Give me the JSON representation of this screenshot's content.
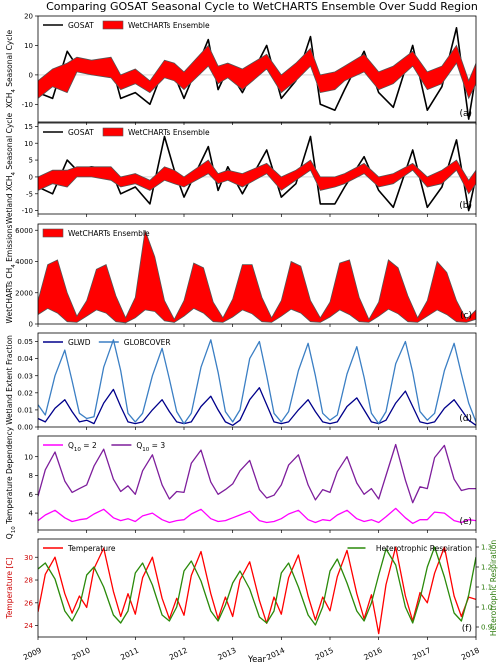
{
  "figure_title": "Comparing GOSAT Seasonal Cycle to WetCHARTS Ensemble Over Sudd Region",
  "x_axis": {
    "label": "Year",
    "ticks": [
      "2009",
      "2010",
      "2011",
      "2012",
      "2013",
      "2014",
      "2015",
      "2016",
      "2017",
      "2018"
    ]
  },
  "chart_data": [
    {
      "type": "line",
      "panel_label": "(a)",
      "ylabel": "XCH4 Seasonal Cycle",
      "ylim": [
        -16,
        20
      ],
      "yticks": [
        -10,
        0,
        10,
        20
      ],
      "grid": false,
      "legend": "top-left",
      "x": [
        2009.0,
        2009.3,
        2009.6,
        2009.8,
        2010.1,
        2010.5,
        2010.7,
        2011.0,
        2011.3,
        2011.6,
        2011.8,
        2012.0,
        2012.5,
        2012.7,
        2012.9,
        2013.2,
        2013.7,
        2014.0,
        2014.3,
        2014.6,
        2014.8,
        2015.1,
        2015.3,
        2015.7,
        2016.0,
        2016.3,
        2016.7,
        2017.0,
        2017.3,
        2017.6,
        2017.85,
        2018.0
      ],
      "series": [
        {
          "name": "GOSAT",
          "style": "line",
          "color": "#000000",
          "values": [
            -6,
            -8,
            8,
            3,
            3,
            4,
            -8,
            -6,
            -10,
            3,
            0,
            -8,
            12,
            -5,
            2,
            -6,
            10,
            -8,
            -2,
            13,
            -10,
            -12,
            -5,
            8,
            -6,
            -11,
            10,
            -12,
            -4,
            16,
            -15,
            0
          ]
        },
        {
          "name": "WetCHARTs Ensemble",
          "style": "band",
          "color": "#ff0000",
          "lower": [
            -8,
            -4,
            -6,
            1,
            0,
            -1,
            -5,
            -3,
            -6,
            -1,
            -2,
            -5,
            3,
            -3,
            -1,
            -5,
            2,
            -6,
            -2,
            3,
            -6,
            -5,
            -2,
            1,
            -5,
            -3,
            3,
            -5,
            -3,
            4,
            -8,
            -3
          ],
          "upper": [
            -2,
            2,
            4,
            6,
            5,
            6,
            0,
            2,
            -2,
            5,
            4,
            1,
            10,
            3,
            4,
            2,
            7,
            0,
            4,
            9,
            0,
            1,
            3,
            7,
            1,
            3,
            8,
            1,
            3,
            10,
            -2,
            4
          ]
        }
      ]
    },
    {
      "type": "line",
      "panel_label": "(b)",
      "ylabel": "Wetland XCH4 Seasonal Cycle",
      "ylim": [
        -11,
        16
      ],
      "yticks": [
        -10,
        -5,
        0,
        5,
        10,
        15
      ],
      "grid": false,
      "legend": "top-left",
      "x": [
        2009.0,
        2009.3,
        2009.6,
        2009.8,
        2010.1,
        2010.5,
        2010.7,
        2011.0,
        2011.3,
        2011.6,
        2011.8,
        2012.0,
        2012.5,
        2012.7,
        2012.9,
        2013.2,
        2013.7,
        2014.0,
        2014.3,
        2014.6,
        2014.8,
        2015.1,
        2015.3,
        2015.7,
        2016.0,
        2016.3,
        2016.7,
        2017.0,
        2017.3,
        2017.6,
        2017.85,
        2018.0
      ],
      "series": [
        {
          "name": "GOSAT",
          "style": "line",
          "color": "#000000",
          "values": [
            -3,
            -5,
            5,
            2,
            3,
            2,
            -5,
            -3,
            -8,
            12,
            2,
            -6,
            9,
            -4,
            3,
            -5,
            8,
            -6,
            -2,
            12,
            -8,
            -8,
            -3,
            6,
            -4,
            -9,
            8,
            -9,
            -3,
            11,
            -10,
            0
          ]
        },
        {
          "name": "WetCHARTs Ensemble",
          "style": "band",
          "color": "#ff0000",
          "lower": [
            -4,
            -2,
            -3,
            0,
            0,
            -1,
            -3,
            -2,
            -4,
            -1,
            -2,
            -3,
            1,
            -2,
            -1,
            -3,
            1,
            -4,
            -1,
            2,
            -4,
            -3,
            -2,
            1,
            -3,
            -2,
            2,
            -3,
            -2,
            2,
            -5,
            -2
          ],
          "upper": [
            0,
            2,
            2,
            3,
            3,
            3,
            0,
            1,
            -1,
            3,
            2,
            0,
            5,
            1,
            2,
            1,
            4,
            0,
            2,
            5,
            0,
            0,
            1,
            4,
            0,
            1,
            4,
            0,
            2,
            5,
            -1,
            2
          ]
        }
      ]
    },
    {
      "type": "area",
      "panel_label": "(c)",
      "ylabel": "WetCHARTs CH4 Emissions",
      "ylim": [
        0,
        6400
      ],
      "yticks": [
        0,
        2000,
        4000,
        6000
      ],
      "grid": false,
      "legend": "top-left",
      "x": [
        2009.0,
        2009.2,
        2009.4,
        2009.6,
        2009.8,
        2010.0,
        2010.2,
        2010.4,
        2010.6,
        2010.8,
        2011.0,
        2011.2,
        2011.4,
        2011.6,
        2011.8,
        2012.0,
        2012.2,
        2012.4,
        2012.6,
        2012.8,
        2013.0,
        2013.2,
        2013.4,
        2013.6,
        2013.8,
        2014.0,
        2014.2,
        2014.4,
        2014.6,
        2014.8,
        2015.0,
        2015.2,
        2015.4,
        2015.6,
        2015.8,
        2016.0,
        2016.2,
        2016.4,
        2016.6,
        2016.8,
        2017.0,
        2017.2,
        2017.4,
        2017.6,
        2017.8,
        2018.0
      ],
      "series": [
        {
          "name": "WetCHARTs Ensemble",
          "style": "band",
          "color": "#ff0000",
          "lower": [
            600,
            1000,
            700,
            150,
            100,
            500,
            900,
            700,
            150,
            80,
            400,
            900,
            800,
            200,
            100,
            500,
            1000,
            700,
            150,
            100,
            450,
            900,
            650,
            150,
            100,
            500,
            950,
            700,
            150,
            100,
            450,
            900,
            600,
            150,
            100,
            500,
            950,
            650,
            150,
            100,
            500,
            900,
            600,
            150,
            100,
            300
          ],
          "upper": [
            1500,
            3800,
            4100,
            2000,
            500,
            1500,
            3500,
            3800,
            1800,
            400,
            1700,
            6000,
            4300,
            1500,
            300,
            1500,
            3900,
            3600,
            1400,
            400,
            1600,
            3800,
            3800,
            1700,
            400,
            1500,
            4000,
            3700,
            1500,
            400,
            1400,
            3900,
            4100,
            1700,
            300,
            1400,
            4100,
            3600,
            1800,
            400,
            1500,
            4000,
            3300,
            1500,
            300,
            900
          ]
        }
      ]
    },
    {
      "type": "line",
      "panel_label": "(d)",
      "ylabel": "Wetland Extent Fraction",
      "ylim": [
        0,
        0.055
      ],
      "yticks": [
        0.0,
        0.01,
        0.02,
        0.03,
        0.04,
        0.05
      ],
      "grid": false,
      "legend": "top-left",
      "x": [
        2009.0,
        2009.15,
        2009.35,
        2009.55,
        2009.7,
        2009.85,
        2010.0,
        2010.15,
        2010.35,
        2010.55,
        2010.7,
        2010.85,
        2011.0,
        2011.15,
        2011.35,
        2011.55,
        2011.7,
        2011.85,
        2012.0,
        2012.15,
        2012.35,
        2012.55,
        2012.7,
        2012.85,
        2013.0,
        2013.15,
        2013.35,
        2013.55,
        2013.7,
        2013.85,
        2014.0,
        2014.15,
        2014.35,
        2014.55,
        2014.7,
        2014.85,
        2015.0,
        2015.15,
        2015.35,
        2015.55,
        2015.7,
        2015.85,
        2016.0,
        2016.15,
        2016.35,
        2016.55,
        2016.7,
        2016.85,
        2017.0,
        2017.15,
        2017.35,
        2017.55,
        2017.7,
        2017.85,
        2018.0
      ],
      "series": [
        {
          "name": "GLWD",
          "style": "line",
          "color": "#00008b",
          "values": [
            0.005,
            0.003,
            0.011,
            0.016,
            0.009,
            0.003,
            0.004,
            0.002,
            0.014,
            0.022,
            0.012,
            0.003,
            0.002,
            0.003,
            0.01,
            0.016,
            0.009,
            0.003,
            0.002,
            0.003,
            0.012,
            0.018,
            0.01,
            0.003,
            0.001,
            0.004,
            0.016,
            0.023,
            0.013,
            0.003,
            0.002,
            0.003,
            0.01,
            0.016,
            0.009,
            0.003,
            0.002,
            0.003,
            0.012,
            0.017,
            0.01,
            0.003,
            0.002,
            0.004,
            0.014,
            0.021,
            0.012,
            0.003,
            0.002,
            0.003,
            0.011,
            0.016,
            0.01,
            0.004,
            0.001
          ]
        },
        {
          "name": "GLOBCOVER",
          "style": "line",
          "color": "#3b7fc4",
          "values": [
            0.013,
            0.007,
            0.03,
            0.045,
            0.027,
            0.008,
            0.005,
            0.006,
            0.035,
            0.051,
            0.033,
            0.008,
            0.003,
            0.008,
            0.03,
            0.046,
            0.028,
            0.009,
            0.002,
            0.008,
            0.035,
            0.051,
            0.032,
            0.009,
            0.003,
            0.01,
            0.04,
            0.05,
            0.03,
            0.008,
            0.003,
            0.009,
            0.033,
            0.049,
            0.03,
            0.008,
            0.004,
            0.007,
            0.031,
            0.047,
            0.029,
            0.008,
            0.002,
            0.009,
            0.037,
            0.05,
            0.032,
            0.009,
            0.004,
            0.008,
            0.033,
            0.049,
            0.031,
            0.014,
            0.003
          ]
        }
      ]
    },
    {
      "type": "line",
      "panel_label": "(e)",
      "ylabel": "Q10 Temperature Dependency",
      "ylim": [
        2.2,
        12.2
      ],
      "yticks": [
        4,
        6,
        8,
        10
      ],
      "grid": false,
      "legend": "top-left",
      "x": [
        2009.0,
        2009.15,
        2009.35,
        2009.55,
        2009.7,
        2009.85,
        2010.0,
        2010.15,
        2010.35,
        2010.55,
        2010.7,
        2010.85,
        2011.0,
        2011.15,
        2011.35,
        2011.55,
        2011.7,
        2011.85,
        2012.0,
        2012.15,
        2012.35,
        2012.55,
        2012.7,
        2012.85,
        2013.0,
        2013.15,
        2013.35,
        2013.55,
        2013.7,
        2013.85,
        2014.0,
        2014.15,
        2014.35,
        2014.55,
        2014.7,
        2014.85,
        2015.0,
        2015.15,
        2015.35,
        2015.55,
        2015.7,
        2015.85,
        2016.0,
        2016.15,
        2016.35,
        2016.55,
        2016.7,
        2016.85,
        2017.0,
        2017.15,
        2017.35,
        2017.55,
        2017.7,
        2017.85,
        2018.0
      ],
      "series": [
        {
          "name": "Q10 = 2",
          "style": "line",
          "color": "#ff00ff",
          "values": [
            3.2,
            3.8,
            4.3,
            3.5,
            3.1,
            3.3,
            3.4,
            3.9,
            4.4,
            3.5,
            3.2,
            3.4,
            3.1,
            3.7,
            4.0,
            3.3,
            3.0,
            3.2,
            3.3,
            3.9,
            4.4,
            3.4,
            3.1,
            3.2,
            3.5,
            3.8,
            4.2,
            3.2,
            3.0,
            3.1,
            3.4,
            3.9,
            4.3,
            3.3,
            3.0,
            3.3,
            3.2,
            3.8,
            4.3,
            3.4,
            3.1,
            3.3,
            3.0,
            3.6,
            4.5,
            3.5,
            2.9,
            3.3,
            3.3,
            4.1,
            4.0,
            3.2,
            3.0,
            3.3,
            3.2
          ]
        },
        {
          "name": "Q10 = 3",
          "style": "line",
          "color": "#7e1e9c",
          "values": [
            5.8,
            8.6,
            10.5,
            7.4,
            6.2,
            6.6,
            7.0,
            9.0,
            10.8,
            7.6,
            6.3,
            6.9,
            6.0,
            8.5,
            10.2,
            7.0,
            5.5,
            6.3,
            6.2,
            9.3,
            10.7,
            7.3,
            6.0,
            6.5,
            7.1,
            8.5,
            9.6,
            6.5,
            5.6,
            5.9,
            7.0,
            9.1,
            10.2,
            7.0,
            5.4,
            6.5,
            6.2,
            8.4,
            10.0,
            7.2,
            6.0,
            6.6,
            5.5,
            8.0,
            11.3,
            7.5,
            5.1,
            6.8,
            6.6,
            9.9,
            11.2,
            7.6,
            6.4,
            6.6,
            6.6
          ]
        }
      ]
    },
    {
      "type": "line",
      "panel_label": "(f)",
      "ylabel": "Temperature [C]",
      "ylabel_right": "Heterotrophic Respiration",
      "ylim": [
        23,
        31.6
      ],
      "yticks": [
        24,
        26,
        28,
        30
      ],
      "ylim_right": [
        0.85,
        1.34
      ],
      "yticks_right": [
        0.9,
        1.0,
        1.1,
        1.2,
        1.3
      ],
      "grid": false,
      "legend": "top-left / top-right",
      "x": [
        2009.0,
        2009.15,
        2009.35,
        2009.55,
        2009.7,
        2009.85,
        2010.0,
        2010.15,
        2010.35,
        2010.55,
        2010.7,
        2010.85,
        2011.0,
        2011.15,
        2011.35,
        2011.55,
        2011.7,
        2011.85,
        2012.0,
        2012.15,
        2012.35,
        2012.55,
        2012.7,
        2012.85,
        2013.0,
        2013.15,
        2013.35,
        2013.55,
        2013.7,
        2013.85,
        2014.0,
        2014.15,
        2014.35,
        2014.55,
        2014.7,
        2014.85,
        2015.0,
        2015.15,
        2015.35,
        2015.55,
        2015.7,
        2015.85,
        2016.0,
        2016.15,
        2016.35,
        2016.55,
        2016.7,
        2016.85,
        2017.0,
        2017.15,
        2017.35,
        2017.55,
        2017.7,
        2017.85,
        2018.0
      ],
      "series": [
        {
          "name": "Temperature",
          "style": "line",
          "axis": "left",
          "color": "#ff0000",
          "values": [
            25.2,
            28.5,
            30.0,
            26.8,
            25.1,
            26.6,
            25.6,
            29.0,
            30.8,
            27.0,
            24.8,
            26.8,
            25.0,
            28.2,
            30.0,
            26.4,
            24.6,
            26.4,
            24.9,
            28.4,
            30.5,
            26.8,
            24.6,
            26.5,
            24.8,
            28.0,
            29.6,
            26.2,
            24.2,
            26.5,
            25.0,
            28.2,
            30.2,
            26.6,
            24.5,
            26.5,
            25.3,
            28.3,
            30.6,
            26.8,
            24.6,
            26.7,
            23.3,
            27.6,
            30.9,
            26.6,
            24.4,
            26.9,
            26.0,
            28.6,
            30.9,
            26.6,
            24.8,
            26.5,
            26.3
          ]
        },
        {
          "name": "Heterotrophic Respiration",
          "style": "line",
          "axis": "right",
          "color": "#2a8a0a",
          "values": [
            1.19,
            1.22,
            1.14,
            0.98,
            0.93,
            1.0,
            1.16,
            1.2,
            1.1,
            0.96,
            0.92,
            0.98,
            1.17,
            1.22,
            1.11,
            0.96,
            0.93,
            1.0,
            1.18,
            1.23,
            1.13,
            0.98,
            0.93,
            1.01,
            1.12,
            1.18,
            1.09,
            0.95,
            0.92,
            0.98,
            1.17,
            1.22,
            1.1,
            0.96,
            0.91,
            1.0,
            1.18,
            1.24,
            1.12,
            0.98,
            0.93,
            1.02,
            1.16,
            1.29,
            1.21,
            1.0,
            0.92,
            1.04,
            1.2,
            1.3,
            1.15,
            0.97,
            0.93,
            1.06,
            1.25
          ]
        }
      ]
    }
  ]
}
